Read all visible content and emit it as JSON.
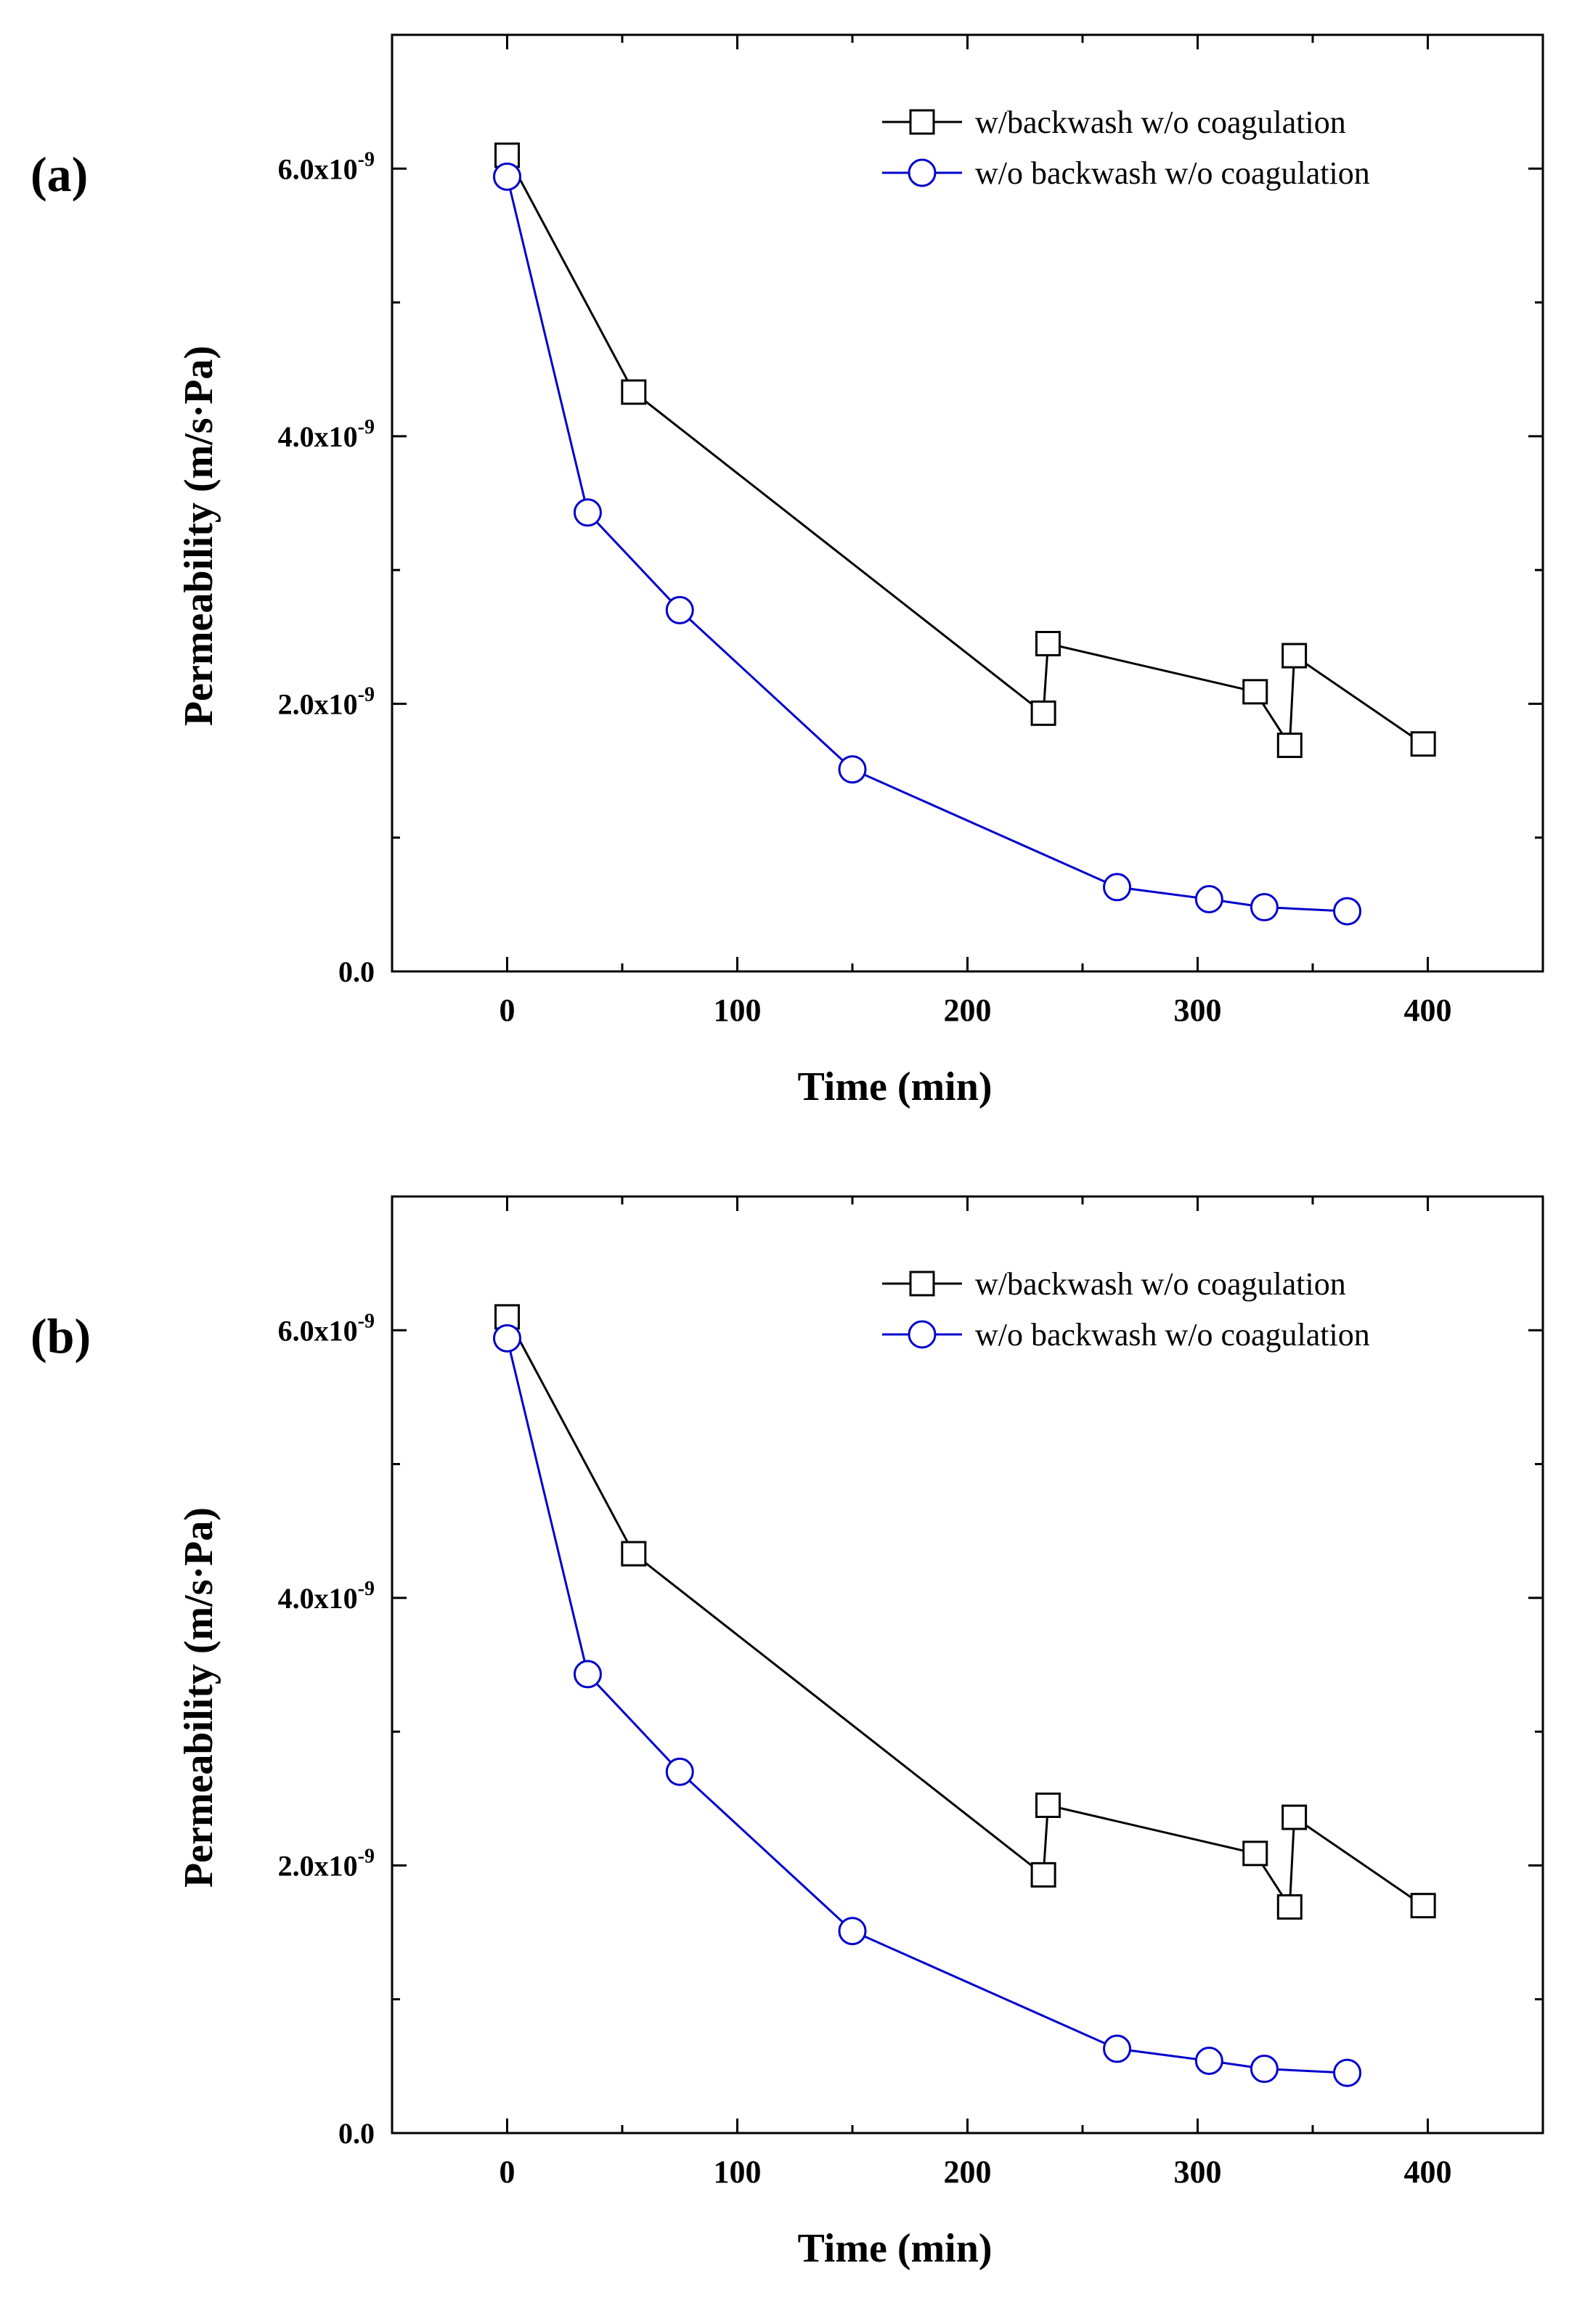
{
  "chart_data": [
    {
      "type": "line",
      "panel_label": "(a)",
      "xlabel": "Time (min)",
      "ylabel": "Permeability (m/s·Pa)",
      "xlim": [
        -50,
        450
      ],
      "ylim": [
        0,
        7e-09
      ],
      "xticks": [
        0,
        100,
        200,
        300,
        400
      ],
      "xtick_labels": [
        "0",
        "100",
        "200",
        "300",
        "400"
      ],
      "yticks": [
        0,
        2e-09,
        4e-09,
        6e-09
      ],
      "ytick_labels": [
        "0.0",
        "2.0x10-9",
        "4.0x10-9",
        "6.0x10-9"
      ],
      "legend_position": "top-right",
      "series": [
        {
          "name": "w/backwash w/o coagulation",
          "color": "#000000",
          "marker": "square",
          "x": [
            0,
            55,
            233,
            235,
            325,
            340,
            342,
            398
          ],
          "y": [
            6.1e-09,
            4.33e-09,
            1.93e-09,
            2.45e-09,
            2.09e-09,
            1.69e-09,
            2.36e-09,
            1.7e-09
          ]
        },
        {
          "name": "w/o backwash w/o coagulation",
          "color": "#0000cc",
          "marker": "circle",
          "x": [
            0,
            35,
            75,
            150,
            265,
            305,
            329,
            365
          ],
          "y": [
            5.94e-09,
            3.43e-09,
            2.7e-09,
            1.51e-09,
            6.3e-10,
            5.4e-10,
            4.8e-10,
            4.5e-10
          ]
        }
      ]
    },
    {
      "type": "line",
      "panel_label": "(b)",
      "xlabel": "Time (min)",
      "ylabel": "Permeability (m/s·Pa)",
      "xlim": [
        -50,
        450
      ],
      "ylim": [
        0,
        7e-09
      ],
      "xticks": [
        0,
        100,
        200,
        300,
        400
      ],
      "xtick_labels": [
        "0",
        "100",
        "200",
        "300",
        "400"
      ],
      "yticks": [
        0,
        2e-09,
        4e-09,
        6e-09
      ],
      "ytick_labels": [
        "0.0",
        "2.0x10-9",
        "4.0x10-9",
        "6.0x10-9"
      ],
      "legend_position": "top-right",
      "series": [
        {
          "name": "w/backwash w/o coagulation",
          "color": "#000000",
          "marker": "square",
          "x": [
            0,
            55,
            233,
            235,
            325,
            340,
            342,
            398
          ],
          "y": [
            6.1e-09,
            4.33e-09,
            1.93e-09,
            2.45e-09,
            2.09e-09,
            1.69e-09,
            2.36e-09,
            1.7e-09
          ]
        },
        {
          "name": "w/o backwash w/o coagulation",
          "color": "#0000cc",
          "marker": "circle",
          "x": [
            0,
            35,
            75,
            150,
            265,
            305,
            329,
            365
          ],
          "y": [
            5.94e-09,
            3.43e-09,
            2.7e-09,
            1.51e-09,
            6.3e-10,
            5.4e-10,
            4.8e-10,
            4.5e-10
          ]
        }
      ]
    }
  ]
}
